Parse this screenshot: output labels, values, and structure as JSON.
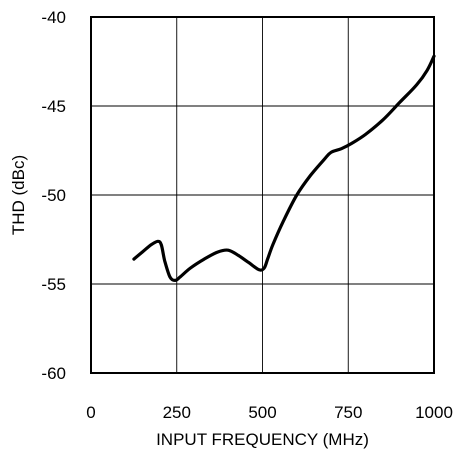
{
  "chart_data": {
    "type": "line",
    "title": "",
    "xlabel": "INPUT FREQUENCY (MHz)",
    "ylabel": "THD (dBc)",
    "xlim": [
      0,
      1000
    ],
    "ylim": [
      -60,
      -40
    ],
    "x_ticks": [
      0,
      250,
      500,
      750,
      1000
    ],
    "x_tick_labels": [
      "0",
      "250",
      "500",
      "750",
      "1000"
    ],
    "y_ticks": [
      -40,
      -45,
      -50,
      -55,
      -60
    ],
    "y_tick_labels": [
      "-40",
      "-45",
      "-50",
      "-55",
      "-60"
    ],
    "grid": true,
    "legend": "none",
    "line_color": "#000000",
    "series": [
      {
        "x": [
          125,
          150,
          175,
          195,
          205,
          215,
          230,
          245,
          260,
          290,
          330,
          370,
          400,
          430,
          460,
          490,
          505,
          515,
          530,
          560,
          600,
          640,
          680,
          700,
          730,
          760,
          800,
          850,
          900,
          950,
          980,
          1000
        ],
        "y": [
          -53.6,
          -53.2,
          -52.8,
          -52.6,
          -52.8,
          -53.7,
          -54.6,
          -54.8,
          -54.6,
          -54.1,
          -53.6,
          -53.2,
          -53.1,
          -53.4,
          -53.8,
          -54.2,
          -54.1,
          -53.6,
          -52.8,
          -51.5,
          -50.0,
          -48.9,
          -48.0,
          -47.6,
          -47.4,
          -47.1,
          -46.6,
          -45.8,
          -44.8,
          -43.8,
          -43.0,
          -42.2
        ]
      }
    ]
  }
}
